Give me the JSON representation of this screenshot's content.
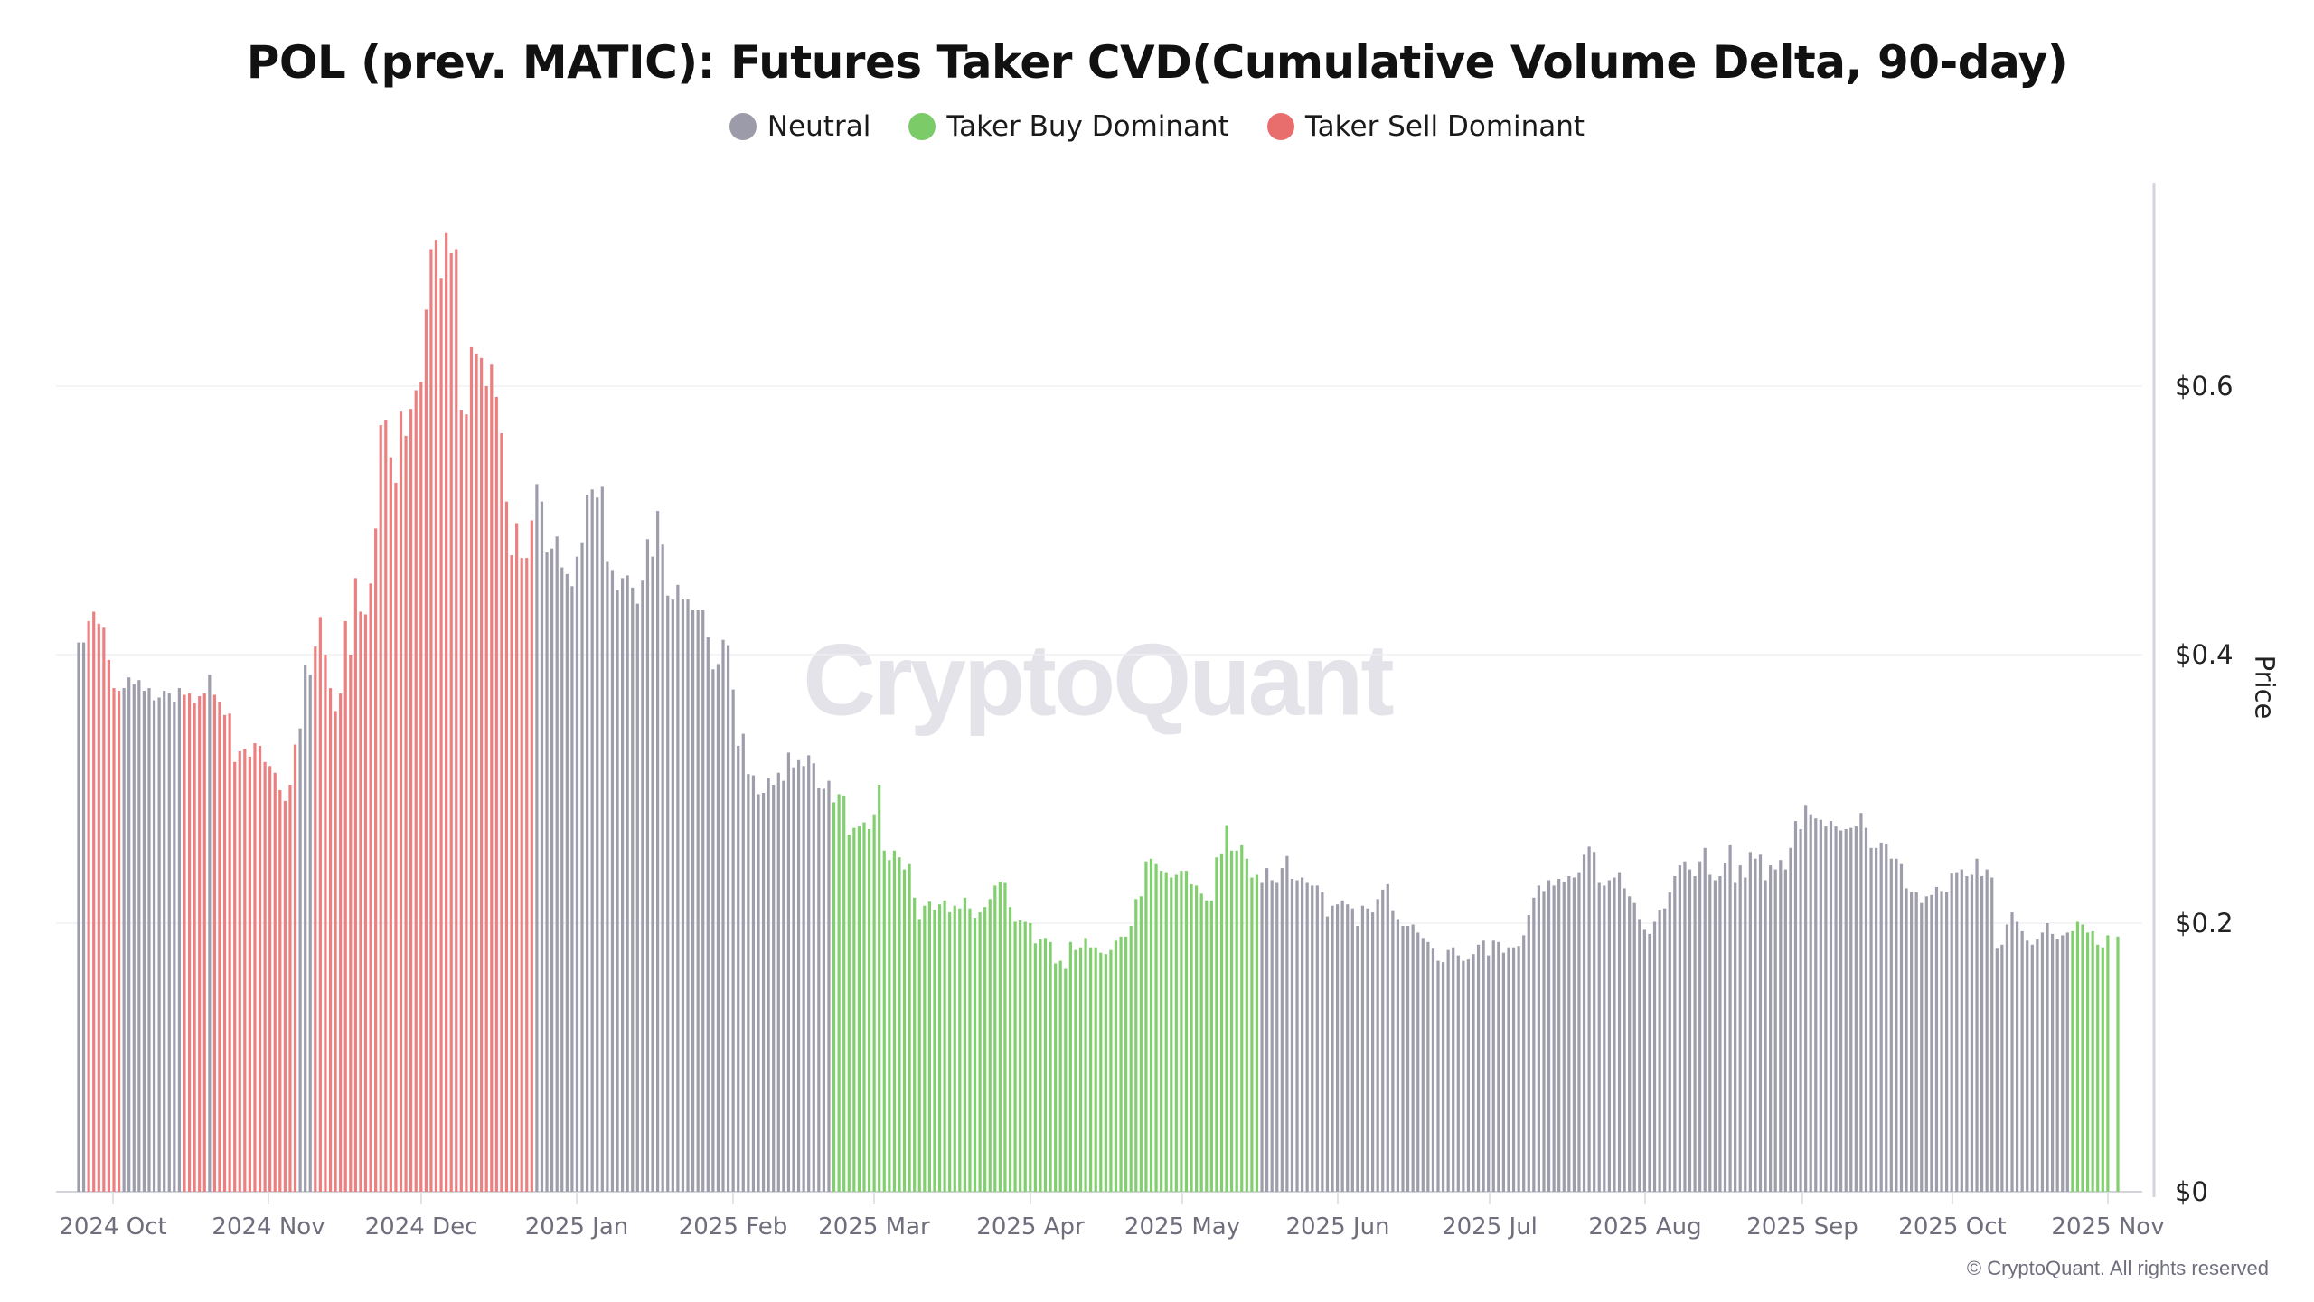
{
  "colors": {
    "neutral": "#9b9ba9",
    "buy": "#7ccb69",
    "sell": "#e86e6e"
  },
  "chart_data": {
    "type": "bar",
    "title": "POL (prev. MATIC): Futures Taker CVD(Cumulative Volume Delta, 90-day)",
    "legend": [
      {
        "key": "neutral",
        "label": "Neutral"
      },
      {
        "key": "buy",
        "label": "Taker Buy Dominant"
      },
      {
        "key": "sell",
        "label": "Taker Sell Dominant"
      }
    ],
    "legend_position": "top-center",
    "ylabel": "Price",
    "y_axis_side": "right",
    "ylim": [
      0,
      0.75
    ],
    "y_ticks": [
      "$0",
      "$0.2",
      "$0.4",
      "$0.6"
    ],
    "y_tick_values": [
      0,
      0.2,
      0.4,
      0.6
    ],
    "x_ticks": [
      "2024 Oct",
      "2024 Nov",
      "2024 Dec",
      "2025 Jan",
      "2025 Feb",
      "2025 Mar",
      "2025 Apr",
      "2025 May",
      "2025 Jun",
      "2025 Jul",
      "2025 Aug",
      "2025 Sep",
      "2025 Oct",
      "2025 Nov"
    ],
    "grid": true,
    "segments": [
      {
        "status": "neutral",
        "values": [
          0.409,
          0.409
        ]
      },
      {
        "status": "sell",
        "values": [
          0.425,
          0.432,
          0.423,
          0.42,
          0.396,
          0.375,
          0.373
        ]
      },
      {
        "status": "neutral",
        "values": [
          0.375,
          0.383,
          0.378,
          0.381,
          0.373,
          0.375,
          0.366,
          0.368,
          0.373,
          0.371,
          0.365,
          0.375
        ]
      },
      {
        "status": "sell",
        "values": [
          0.37,
          0.371,
          0.364,
          0.369,
          0.371
        ]
      },
      {
        "status": "neutral",
        "values": [
          0.385
        ]
      },
      {
        "status": "sell",
        "values": [
          0.37,
          0.365,
          0.355,
          0.356,
          0.32,
          0.328,
          0.33,
          0.324,
          0.334,
          0.332,
          0.32,
          0.317,
          0.312,
          0.299,
          0.291,
          0.303,
          0.333
        ]
      },
      {
        "status": "neutral",
        "values": [
          0.345,
          0.392,
          0.385
        ]
      },
      {
        "status": "sell",
        "values": [
          0.406,
          0.428,
          0.4,
          0.375,
          0.358,
          0.371,
          0.425,
          0.4,
          0.457,
          0.432,
          0.43,
          0.453,
          0.494,
          0.571,
          0.575,
          0.547,
          0.528,
          0.581,
          0.563,
          0.583,
          0.597,
          0.603,
          0.657,
          0.702,
          0.709,
          0.68,
          0.714,
          0.699,
          0.702,
          0.582,
          0.579,
          0.629,
          0.624,
          0.621,
          0.6,
          0.616,
          0.592,
          0.565,
          0.514,
          0.474,
          0.498,
          0.472,
          0.472,
          0.5
        ]
      },
      {
        "status": "neutral",
        "values": [
          0.527,
          0.514,
          0.476,
          0.479,
          0.488,
          0.465,
          0.46,
          0.451,
          0.473,
          0.483,
          0.519,
          0.523,
          0.517,
          0.525,
          0.469,
          0.463,
          0.448,
          0.457,
          0.459,
          0.45,
          0.438,
          0.455,
          0.486,
          0.473,
          0.507,
          0.482,
          0.444,
          0.441,
          0.452,
          0.441,
          0.441,
          0.433,
          0.433,
          0.433,
          0.413,
          0.389,
          0.393,
          0.411,
          0.407,
          0.374,
          0.332,
          0.341,
          0.311,
          0.31,
          0.296,
          0.297,
          0.308,
          0.303,
          0.312,
          0.306,
          0.327,
          0.316,
          0.322,
          0.317,
          0.325,
          0.319,
          0.301,
          0.3,
          0.306
        ]
      },
      {
        "status": "buy",
        "values": [
          0.29,
          0.296,
          0.295,
          0.266,
          0.271,
          0.272,
          0.275,
          0.27,
          0.281,
          0.303,
          0.254,
          0.247,
          0.254,
          0.249,
          0.24,
          0.244,
          0.219,
          0.203,
          0.213,
          0.216,
          0.21,
          0.214,
          0.217,
          0.208,
          0.213,
          0.211,
          0.219,
          0.211,
          0.204,
          0.208,
          0.212,
          0.218,
          0.228,
          0.231,
          0.23,
          0.212,
          0.201,
          0.202,
          0.201,
          0.2,
          0.185,
          0.188,
          0.189,
          0.186,
          0.17,
          0.172,
          0.166,
          0.186,
          0.18,
          0.182,
          0.189,
          0.182,
          0.182,
          0.178,
          0.177,
          0.18,
          0.187,
          0.19,
          0.19,
          0.198,
          0.218,
          0.22,
          0.246,
          0.248,
          0.244,
          0.239,
          0.238,
          0.234,
          0.236,
          0.239,
          0.239,
          0.229,
          0.228,
          0.222,
          0.217,
          0.217,
          0.249,
          0.252,
          0.273,
          0.254,
          0.254,
          0.258,
          0.248,
          0.234,
          0.236
        ]
      },
      {
        "status": "neutral",
        "values": [
          0.23,
          0.241,
          0.232,
          0.23,
          0.241,
          0.25,
          0.233,
          0.232,
          0.234,
          0.23,
          0.228,
          0.228,
          0.223,
          0.205,
          0.213,
          0.214,
          0.217,
          0.214,
          0.211,
          0.198,
          0.213,
          0.211,
          0.208,
          0.218,
          0.225,
          0.229,
          0.209,
          0.203,
          0.198,
          0.198,
          0.199,
          0.193,
          0.189,
          0.186,
          0.181,
          0.172,
          0.171,
          0.18,
          0.182,
          0.176,
          0.172,
          0.173,
          0.177,
          0.184,
          0.187,
          0.176,
          0.187,
          0.186,
          0.178,
          0.182,
          0.182,
          0.183,
          0.191,
          0.206,
          0.219,
          0.228,
          0.224,
          0.232,
          0.228,
          0.233,
          0.231,
          0.235,
          0.234,
          0.238,
          0.251,
          0.257,
          0.253,
          0.23,
          0.228,
          0.232,
          0.234,
          0.238,
          0.226,
          0.22,
          0.215,
          0.203,
          0.195,
          0.192,
          0.201,
          0.21,
          0.211,
          0.223,
          0.235,
          0.243,
          0.246,
          0.24,
          0.235,
          0.246,
          0.256,
          0.236,
          0.232,
          0.235,
          0.245,
          0.258,
          0.23,
          0.243,
          0.234,
          0.253,
          0.248,
          0.251,
          0.232,
          0.243,
          0.24,
          0.247,
          0.24,
          0.256,
          0.276,
          0.27,
          0.288,
          0.281,
          0.278,
          0.277,
          0.272,
          0.276,
          0.272,
          0.269,
          0.27,
          0.271,
          0.272,
          0.282,
          0.271,
          0.256,
          0.256,
          0.26,
          0.259,
          0.248,
          0.248,
          0.244,
          0.226,
          0.223,
          0.223,
          0.215,
          0.22,
          0.221,
          0.227,
          0.224,
          0.223,
          0.237,
          0.238,
          0.24,
          0.235,
          0.236,
          0.248,
          0.235,
          0.24,
          0.234,
          0.181,
          0.184,
          0.199,
          0.208,
          0.201,
          0.194,
          0.187,
          0.184,
          0.188,
          0.193,
          0.2,
          0.192,
          0.188,
          0.191,
          0.193
        ]
      },
      {
        "status": "buy",
        "values": [
          0.194,
          0.201,
          0.199,
          0.193,
          0.194,
          0.184,
          0.182,
          0.191,
          null,
          0.19
        ]
      }
    ]
  },
  "watermark": "CryptoQuant",
  "copyright": "© CryptoQuant. All rights reserved"
}
